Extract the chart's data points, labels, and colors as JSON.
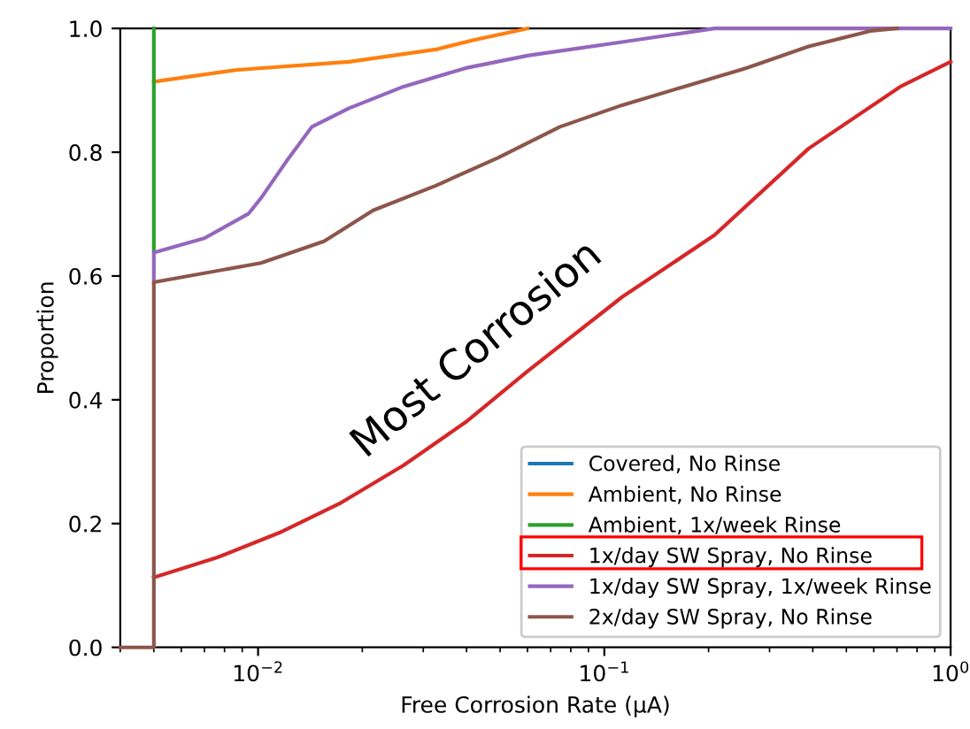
{
  "chart_data": {
    "type": "line",
    "xlabel": "Free Corrosion Rate (μA)",
    "ylabel": "Proportion",
    "log": "x",
    "xlim": [
      0.004,
      1
    ],
    "xticks": [
      {
        "value": 0.01,
        "label": "10$^{−2}$"
      },
      {
        "value": 0.1,
        "label": "10$^{−1}$"
      },
      {
        "value": 1,
        "label": "10$^{0}$"
      }
    ],
    "ylim": [
      0,
      1
    ],
    "yticks": [
      {
        "value": 0,
        "label": "0.0"
      },
      {
        "value": 0.2,
        "label": "0.2"
      },
      {
        "value": 0.4,
        "label": "0.4"
      },
      {
        "value": 0.6,
        "label": "0.6"
      },
      {
        "value": 0.8,
        "label": "0.8"
      },
      {
        "value": 1,
        "label": "1.0"
      }
    ],
    "grid": false,
    "legend": "bottom right",
    "annotations": [
      "Most Corrosion"
    ],
    "series": [
      {
        "name": "Covered, No Rinse",
        "color": "#1f77b4"
      },
      {
        "name": "Ambient, No Rinse",
        "color": "#ff7f0e",
        "x": [
          0.005,
          0.0087,
          0.0183,
          0.0326,
          0.0417,
          0.06
        ],
        "values": [
          0.914,
          0.933,
          0.946,
          0.966,
          0.981,
          1.0
        ]
      },
      {
        "name": "Ambient, 1x/week Rinse",
        "color": "#2ca02c",
        "x": [
          0.005,
          0.005
        ],
        "values": [
          0.64,
          1.0
        ]
      },
      {
        "name": "1x/day SW Spray, No Rinse",
        "color": "#d62728",
        "x": [
          0.005,
          0.0076,
          0.0115,
          0.0174,
          0.0263,
          0.0398,
          0.06,
          0.1125,
          0.208,
          0.389,
          0.716,
          1.0
        ],
        "values": [
          0.113,
          0.145,
          0.185,
          0.234,
          0.294,
          0.364,
          0.446,
          0.566,
          0.666,
          0.806,
          0.906,
          0.946
        ]
      },
      {
        "name": "1x/day SW Spray, 1x/week Rinse",
        "color": "#9467bd",
        "x": [
          0.005,
          0.005,
          0.007,
          0.0094,
          0.0102,
          0.0121,
          0.0143,
          0.0183,
          0.0263,
          0.0398,
          0.06,
          0.1125,
          0.208,
          1
        ],
        "values": [
          0.59,
          0.638,
          0.661,
          0.701,
          0.726,
          0.786,
          0.841,
          0.871,
          0.906,
          0.936,
          0.956,
          0.978,
          1.0,
          1.0
        ]
      },
      {
        "name": "2x/day SW Spray, No Rinse",
        "color": "#8c564b",
        "x": [
          0.004,
          0.005,
          0.005,
          0.0102,
          0.0155,
          0.0215,
          0.0326,
          0.0493,
          0.0744,
          0.1125,
          0.17,
          0.257,
          0.389,
          0.587,
          0.7
        ],
        "values": [
          0,
          0,
          0.59,
          0.621,
          0.656,
          0.706,
          0.746,
          0.791,
          0.841,
          0.876,
          0.906,
          0.936,
          0.971,
          0.996,
          1.0
        ]
      }
    ]
  }
}
